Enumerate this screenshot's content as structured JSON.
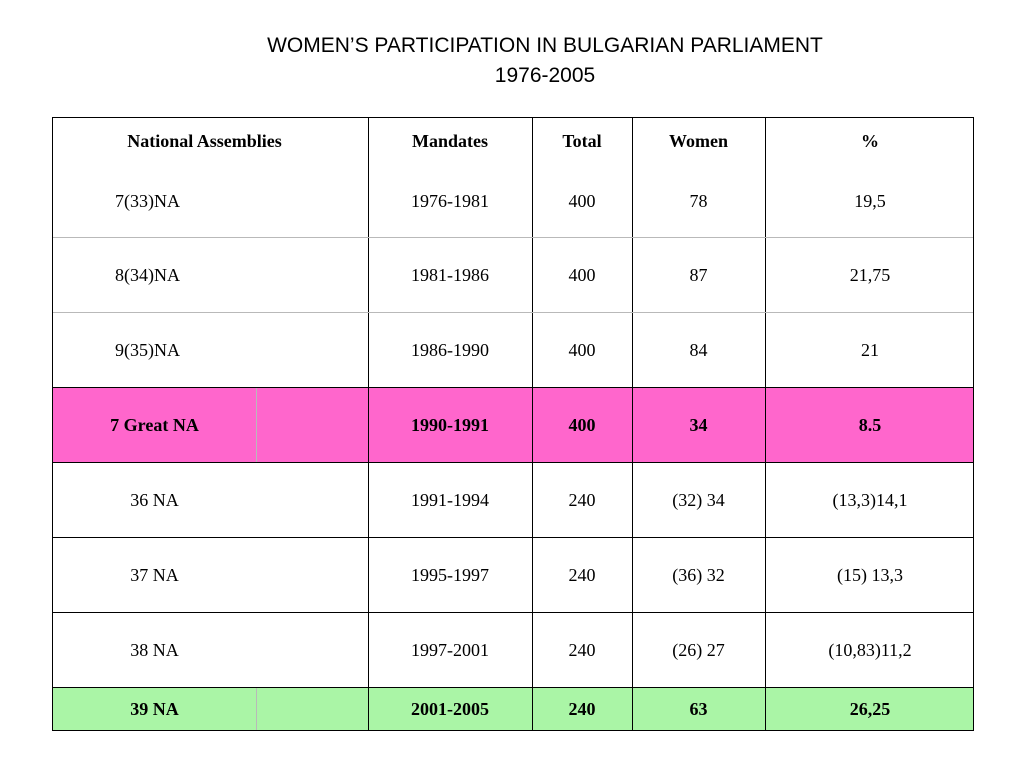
{
  "title": {
    "line1": "WOMEN’S PARTICIPATION IN BULGARIAN PARLIAMENT",
    "line2": "1976-2005"
  },
  "table": {
    "headers": [
      "National Assemblies",
      "Mandates",
      "Total",
      "Women",
      "%"
    ],
    "rows": [
      [
        "7(33)NA",
        "1976-1981",
        "400",
        "78",
        "19,5"
      ],
      [
        "8(34)NA",
        "1981-1986",
        "400",
        "87",
        "21,75"
      ],
      [
        "9(35)NA",
        "1986-1990",
        "400",
        "84",
        "21"
      ],
      [
        "7 Great NA",
        "1990-1991",
        "400",
        "34",
        "8.5"
      ],
      [
        "36 NA",
        "1991-1994",
        "240",
        "(32) 34",
        "(13,3)14,1"
      ],
      [
        "37 NA",
        "1995-1997",
        "240",
        "(36) 32",
        "(15) 13,3"
      ],
      [
        "38 NA",
        "1997-2001",
        "240",
        "(26) 27",
        "(10,83)11,2"
      ],
      [
        "39 NA",
        "2001-2005",
        "240",
        "63",
        "26,25"
      ]
    ],
    "highlight_colors": {
      "7 Great NA": "#ff66cc",
      "39 NA": "#aaf5a6"
    }
  }
}
